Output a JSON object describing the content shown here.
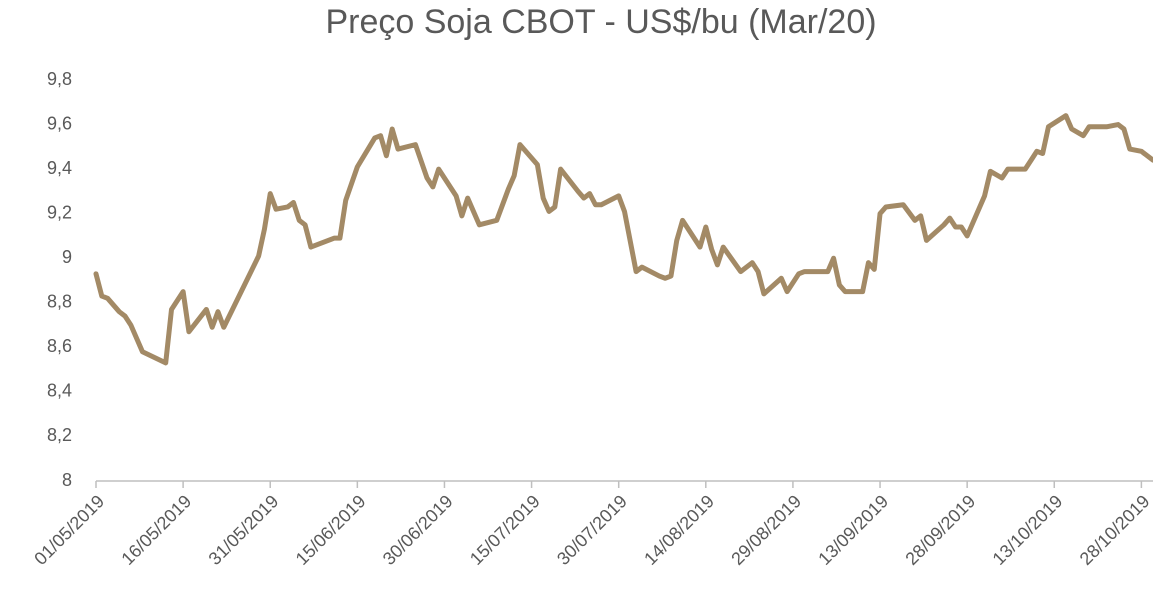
{
  "chart_data": {
    "type": "line",
    "title": "Preço Soja CBOT - US$/bu (Mar/20)",
    "color": "#a38a66",
    "x": [
      "01/05/2019",
      "02/05/2019",
      "03/05/2019",
      "05/05/2019",
      "06/05/2019",
      "07/05/2019",
      "09/05/2019",
      "13/05/2019",
      "14/05/2019",
      "16/05/2019",
      "17/05/2019",
      "20/05/2019",
      "21/05/2019",
      "22/05/2019",
      "23/05/2019",
      "29/05/2019",
      "30/05/2019",
      "31/05/2019",
      "01/06/2019",
      "03/06/2019",
      "04/06/2019",
      "05/06/2019",
      "06/06/2019",
      "07/06/2019",
      "11/06/2019",
      "12/06/2019",
      "13/06/2019",
      "15/06/2019",
      "18/06/2019",
      "19/06/2019",
      "20/06/2019",
      "21/06/2019",
      "22/06/2019",
      "25/06/2019",
      "27/06/2019",
      "28/06/2019",
      "29/06/2019",
      "02/07/2019",
      "03/07/2019",
      "04/07/2019",
      "06/07/2019",
      "09/07/2019",
      "11/07/2019",
      "12/07/2019",
      "13/07/2019",
      "16/07/2019",
      "17/07/2019",
      "18/07/2019",
      "19/07/2019",
      "20/07/2019",
      "23/07/2019",
      "24/07/2019",
      "25/07/2019",
      "26/07/2019",
      "27/07/2019",
      "30/07/2019",
      "31/07/2019",
      "02/08/2019",
      "03/08/2019",
      "06/08/2019",
      "07/08/2019",
      "08/08/2019",
      "09/08/2019",
      "10/08/2019",
      "13/08/2019",
      "14/08/2019",
      "15/08/2019",
      "16/08/2019",
      "17/08/2019",
      "20/08/2019",
      "22/08/2019",
      "23/08/2019",
      "24/08/2019",
      "27/08/2019",
      "28/08/2019",
      "30/08/2019",
      "31/08/2019",
      "04/09/2019",
      "05/09/2019",
      "06/09/2019",
      "07/09/2019",
      "10/09/2019",
      "11/09/2019",
      "12/09/2019",
      "13/09/2019",
      "14/09/2019",
      "17/09/2019",
      "19/09/2019",
      "20/09/2019",
      "21/09/2019",
      "24/09/2019",
      "25/09/2019",
      "26/09/2019",
      "27/09/2019",
      "28/09/2019",
      "01/10/2019",
      "02/10/2019",
      "04/10/2019",
      "05/10/2019",
      "08/10/2019",
      "09/10/2019",
      "10/10/2019",
      "11/10/2019",
      "12/10/2019",
      "15/10/2019",
      "16/10/2019",
      "18/10/2019",
      "19/10/2019",
      "22/10/2019",
      "24/10/2019",
      "25/10/2019",
      "26/10/2019",
      "28/10/2019",
      "30/10/2019"
    ],
    "values": [
      8.93,
      8.83,
      8.82,
      8.76,
      8.74,
      8.7,
      8.58,
      8.53,
      8.77,
      8.85,
      8.67,
      8.77,
      8.69,
      8.76,
      8.69,
      9.01,
      9.13,
      9.29,
      9.22,
      9.23,
      9.25,
      9.17,
      9.15,
      9.05,
      9.09,
      9.09,
      9.26,
      9.41,
      9.54,
      9.55,
      9.46,
      9.58,
      9.49,
      9.51,
      9.36,
      9.32,
      9.4,
      9.28,
      9.19,
      9.27,
      9.15,
      9.17,
      9.31,
      9.37,
      9.51,
      9.42,
      9.27,
      9.21,
      9.23,
      9.4,
      9.3,
      9.27,
      9.29,
      9.24,
      9.24,
      9.28,
      9.21,
      8.94,
      8.96,
      8.92,
      8.91,
      8.92,
      9.08,
      9.17,
      9.05,
      9.14,
      9.04,
      8.97,
      9.05,
      8.94,
      8.98,
      8.94,
      8.84,
      8.91,
      8.85,
      8.93,
      8.94,
      8.94,
      9.0,
      8.88,
      8.85,
      8.85,
      8.98,
      8.95,
      9.2,
      9.23,
      9.24,
      9.17,
      9.19,
      9.08,
      9.15,
      9.18,
      9.14,
      9.14,
      9.1,
      9.28,
      9.39,
      9.36,
      9.4,
      9.4,
      9.44,
      9.48,
      9.47,
      9.59,
      9.64,
      9.58,
      9.55,
      9.59,
      9.59,
      9.6,
      9.58,
      9.49,
      9.48,
      9.44
    ],
    "xlim": [
      "01/05/2019",
      "30/10/2019"
    ],
    "xticks": [
      "01/05/2019",
      "16/05/2019",
      "31/05/2019",
      "15/06/2019",
      "30/06/2019",
      "15/07/2019",
      "30/07/2019",
      "14/08/2019",
      "29/08/2019",
      "13/09/2019",
      "28/09/2019",
      "13/10/2019",
      "28/10/2019"
    ],
    "ylim": [
      8,
      9.8
    ],
    "yticks": [
      8,
      {
        "value": 8.2,
        "label": "8,2"
      },
      {
        "value": 8.4,
        "label": "8,4"
      },
      {
        "value": 8.6,
        "label": "8,6"
      },
      {
        "value": 8.8,
        "label": "8,8"
      },
      9,
      {
        "value": 9.2,
        "label": "9,2"
      },
      {
        "value": 9.4,
        "label": "9,4"
      },
      {
        "value": 9.6,
        "label": "9,6"
      },
      {
        "value": 9.8,
        "label": "9,8"
      }
    ]
  }
}
